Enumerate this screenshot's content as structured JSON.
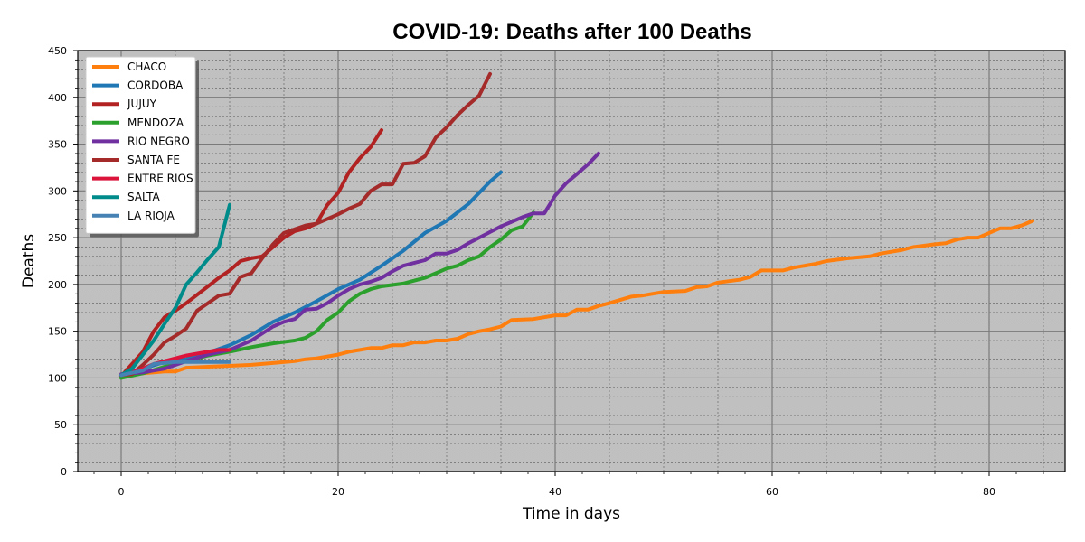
{
  "chart_data": {
    "type": "line",
    "title": "COVID-19: Deaths after 100 Deaths",
    "xlabel": "Time in days",
    "ylabel": "Deaths",
    "xlim": [
      -4,
      87
    ],
    "ylim": [
      0,
      450
    ],
    "x_ticks": [
      0,
      20,
      40,
      60,
      80
    ],
    "y_ticks": [
      0,
      50,
      100,
      150,
      200,
      250,
      300,
      350,
      400,
      450
    ],
    "grid": true,
    "legend_position": "top-left",
    "plot_background": "#c0c0c0",
    "series": [
      {
        "name": "CHACO",
        "color": "#ff7f0e",
        "points": [
          [
            0,
            103
          ],
          [
            2,
            105
          ],
          [
            4,
            107
          ],
          [
            5,
            107
          ],
          [
            6,
            111
          ],
          [
            8,
            112
          ],
          [
            10,
            113
          ],
          [
            12,
            114
          ],
          [
            13,
            115
          ],
          [
            14,
            116
          ],
          [
            16,
            118
          ],
          [
            17,
            120
          ],
          [
            18,
            121
          ],
          [
            20,
            125
          ],
          [
            21,
            128
          ],
          [
            22,
            130
          ],
          [
            23,
            132
          ],
          [
            24,
            132
          ],
          [
            25,
            135
          ],
          [
            26,
            135
          ],
          [
            27,
            138
          ],
          [
            28,
            138
          ],
          [
            29,
            140
          ],
          [
            30,
            140
          ],
          [
            31,
            142
          ],
          [
            32,
            147
          ],
          [
            33,
            150
          ],
          [
            34,
            152
          ],
          [
            35,
            155
          ],
          [
            36,
            162
          ],
          [
            38,
            163
          ],
          [
            40,
            167
          ],
          [
            41,
            167
          ],
          [
            42,
            173
          ],
          [
            43,
            173
          ],
          [
            44,
            177
          ],
          [
            45,
            180
          ],
          [
            47,
            187
          ],
          [
            48,
            188
          ],
          [
            49,
            190
          ],
          [
            50,
            192
          ],
          [
            52,
            193
          ],
          [
            53,
            197
          ],
          [
            54,
            198
          ],
          [
            55,
            202
          ],
          [
            57,
            205
          ],
          [
            58,
            208
          ],
          [
            59,
            215
          ],
          [
            61,
            215
          ],
          [
            62,
            218
          ],
          [
            64,
            222
          ],
          [
            65,
            225
          ],
          [
            67,
            228
          ],
          [
            69,
            230
          ],
          [
            70,
            233
          ],
          [
            72,
            237
          ],
          [
            73,
            240
          ],
          [
            75,
            243
          ],
          [
            76,
            244
          ],
          [
            77,
            248
          ],
          [
            78,
            250
          ],
          [
            79,
            250
          ],
          [
            80,
            255
          ],
          [
            81,
            260
          ],
          [
            82,
            260
          ],
          [
            83,
            263
          ],
          [
            84,
            268
          ]
        ]
      },
      {
        "name": "CORDOBA",
        "color": "#1f77b4",
        "points": [
          [
            0,
            103
          ],
          [
            2,
            110
          ],
          [
            4,
            117
          ],
          [
            6,
            120
          ],
          [
            8,
            127
          ],
          [
            10,
            135
          ],
          [
            12,
            146
          ],
          [
            14,
            160
          ],
          [
            16,
            170
          ],
          [
            18,
            182
          ],
          [
            20,
            195
          ],
          [
            22,
            205
          ],
          [
            24,
            220
          ],
          [
            26,
            236
          ],
          [
            28,
            255
          ],
          [
            30,
            268
          ],
          [
            32,
            286
          ],
          [
            34,
            310
          ],
          [
            35,
            320
          ]
        ]
      },
      {
        "name": "JUJUY",
        "color": "#b22222",
        "points": [
          [
            0,
            102
          ],
          [
            1,
            115
          ],
          [
            2,
            128
          ],
          [
            3,
            150
          ],
          [
            4,
            165
          ],
          [
            5,
            172
          ],
          [
            6,
            180
          ],
          [
            7,
            189
          ],
          [
            8,
            198
          ],
          [
            9,
            207
          ],
          [
            10,
            215
          ],
          [
            11,
            225
          ],
          [
            12,
            228
          ],
          [
            13,
            230
          ],
          [
            14,
            240
          ],
          [
            15,
            250
          ],
          [
            16,
            257
          ],
          [
            17,
            260
          ],
          [
            18,
            265
          ],
          [
            19,
            285
          ],
          [
            20,
            298
          ],
          [
            21,
            320
          ],
          [
            22,
            335
          ],
          [
            23,
            347
          ],
          [
            24,
            365
          ]
        ]
      },
      {
        "name": "MENDOZA",
        "color": "#2ca02c",
        "points": [
          [
            0,
            100
          ],
          [
            2,
            105
          ],
          [
            4,
            112
          ],
          [
            6,
            118
          ],
          [
            8,
            124
          ],
          [
            10,
            128
          ],
          [
            12,
            133
          ],
          [
            14,
            137
          ],
          [
            16,
            140
          ],
          [
            17,
            143
          ],
          [
            18,
            150
          ],
          [
            19,
            162
          ],
          [
            20,
            170
          ],
          [
            21,
            182
          ],
          [
            22,
            190
          ],
          [
            23,
            195
          ],
          [
            24,
            198
          ],
          [
            26,
            201
          ],
          [
            27,
            204
          ],
          [
            28,
            207
          ],
          [
            29,
            212
          ],
          [
            30,
            217
          ],
          [
            31,
            220
          ],
          [
            32,
            226
          ],
          [
            33,
            230
          ],
          [
            34,
            240
          ],
          [
            35,
            248
          ],
          [
            36,
            258
          ],
          [
            37,
            262
          ],
          [
            38,
            277
          ]
        ]
      },
      {
        "name": "RIO NEGRO",
        "color": "#7030a0",
        "points": [
          [
            0,
            104
          ],
          [
            2,
            106
          ],
          [
            4,
            110
          ],
          [
            6,
            118
          ],
          [
            8,
            125
          ],
          [
            10,
            130
          ],
          [
            12,
            140
          ],
          [
            14,
            155
          ],
          [
            15,
            160
          ],
          [
            16,
            163
          ],
          [
            17,
            173
          ],
          [
            18,
            174
          ],
          [
            19,
            180
          ],
          [
            20,
            188
          ],
          [
            21,
            195
          ],
          [
            22,
            200
          ],
          [
            23,
            203
          ],
          [
            24,
            207
          ],
          [
            25,
            214
          ],
          [
            26,
            220
          ],
          [
            27,
            223
          ],
          [
            28,
            226
          ],
          [
            29,
            233
          ],
          [
            30,
            233
          ],
          [
            31,
            237
          ],
          [
            32,
            244
          ],
          [
            33,
            250
          ],
          [
            34,
            256
          ],
          [
            35,
            262
          ],
          [
            36,
            267
          ],
          [
            37,
            272
          ],
          [
            38,
            276
          ],
          [
            39,
            276
          ],
          [
            40,
            295
          ],
          [
            41,
            308
          ],
          [
            42,
            318
          ],
          [
            43,
            328
          ],
          [
            44,
            340
          ]
        ]
      },
      {
        "name": "SANTA FE",
        "color": "#a52a2a",
        "points": [
          [
            0,
            103
          ],
          [
            1,
            104
          ],
          [
            2,
            114
          ],
          [
            3,
            125
          ],
          [
            4,
            138
          ],
          [
            5,
            145
          ],
          [
            6,
            153
          ],
          [
            7,
            172
          ],
          [
            8,
            180
          ],
          [
            9,
            188
          ],
          [
            10,
            190
          ],
          [
            11,
            208
          ],
          [
            12,
            212
          ],
          [
            13,
            228
          ],
          [
            14,
            243
          ],
          [
            15,
            255
          ],
          [
            16,
            259
          ],
          [
            17,
            263
          ],
          [
            18,
            265
          ],
          [
            19,
            270
          ],
          [
            20,
            275
          ],
          [
            21,
            281
          ],
          [
            22,
            286
          ],
          [
            23,
            300
          ],
          [
            24,
            307
          ],
          [
            25,
            307
          ],
          [
            26,
            329
          ],
          [
            27,
            330
          ],
          [
            28,
            337
          ],
          [
            29,
            357
          ],
          [
            30,
            368
          ],
          [
            31,
            381
          ],
          [
            32,
            392
          ],
          [
            33,
            402
          ],
          [
            34,
            425
          ]
        ]
      },
      {
        "name": "ENTRE RIOS",
        "color": "#dc143c",
        "points": [
          [
            0,
            103
          ],
          [
            1,
            106
          ],
          [
            2,
            110
          ],
          [
            3,
            115
          ],
          [
            4,
            118
          ],
          [
            5,
            121
          ],
          [
            6,
            124
          ],
          [
            7,
            126
          ],
          [
            8,
            128
          ],
          [
            9,
            130
          ],
          [
            10,
            130
          ]
        ]
      },
      {
        "name": "SALTA",
        "color": "#008b8b",
        "points": [
          [
            0,
            103
          ],
          [
            1,
            110
          ],
          [
            2,
            125
          ],
          [
            3,
            140
          ],
          [
            4,
            158
          ],
          [
            5,
            175
          ],
          [
            6,
            200
          ],
          [
            7,
            213
          ],
          [
            8,
            227
          ],
          [
            9,
            240
          ],
          [
            10,
            285
          ]
        ]
      },
      {
        "name": "LA RIOJA",
        "color": "#4682b4",
        "points": [
          [
            0,
            103
          ],
          [
            2,
            108
          ],
          [
            3,
            115
          ],
          [
            4,
            116
          ],
          [
            5,
            117
          ],
          [
            6,
            117
          ],
          [
            7,
            117
          ],
          [
            8,
            117
          ],
          [
            9,
            117
          ],
          [
            10,
            117
          ]
        ]
      }
    ]
  }
}
